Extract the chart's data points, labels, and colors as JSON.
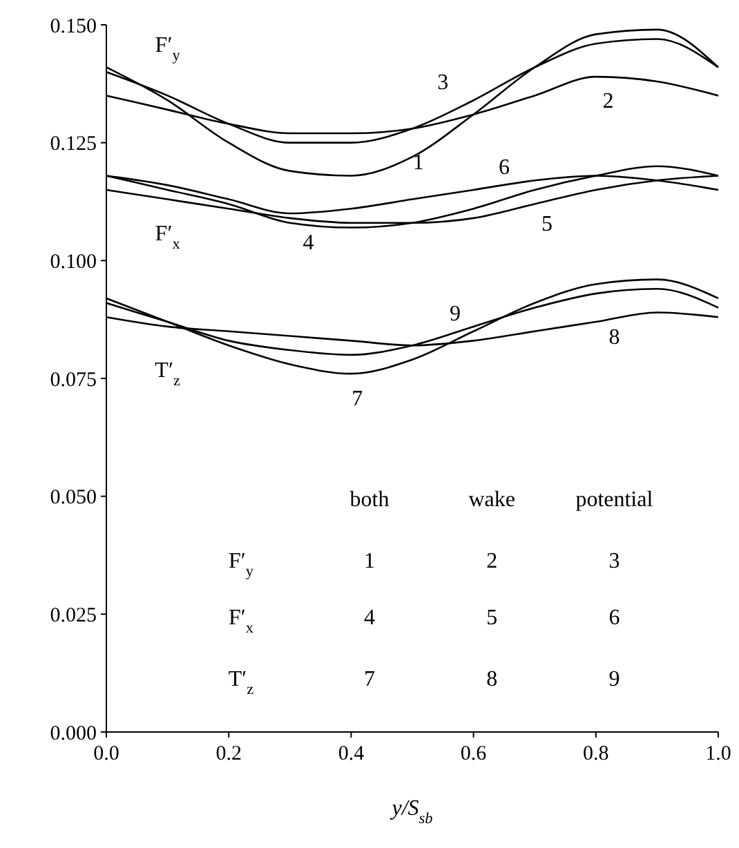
{
  "chart_data": {
    "type": "line",
    "xlabel": "y/S$_{sb}$",
    "x": [
      0,
      0.1,
      0.2,
      0.3,
      0.4,
      0.5,
      0.6,
      0.7,
      0.8,
      0.9,
      1.0
    ],
    "series": [
      {
        "name": "1",
        "color": "#000000",
        "values": [
          0.141,
          0.134,
          0.125,
          0.119,
          0.118,
          0.122,
          0.131,
          0.141,
          0.148,
          0.149,
          0.141
        ]
      },
      {
        "name": "2",
        "color": "#000000",
        "values": [
          0.135,
          0.132,
          0.129,
          0.127,
          0.127,
          0.128,
          0.131,
          0.135,
          0.139,
          0.138,
          0.135
        ]
      },
      {
        "name": "3",
        "color": "#000000",
        "values": [
          0.14,
          0.135,
          0.129,
          0.125,
          0.125,
          0.128,
          0.134,
          0.141,
          0.146,
          0.147,
          0.141
        ]
      },
      {
        "name": "4",
        "color": "#000000",
        "values": [
          0.118,
          0.115,
          0.112,
          0.108,
          0.107,
          0.108,
          0.111,
          0.115,
          0.118,
          0.12,
          0.118
        ]
      },
      {
        "name": "5",
        "color": "#000000",
        "values": [
          0.115,
          0.113,
          0.111,
          0.109,
          0.108,
          0.108,
          0.109,
          0.112,
          0.115,
          0.117,
          0.118
        ]
      },
      {
        "name": "6",
        "color": "#000000",
        "values": [
          0.118,
          0.116,
          0.113,
          0.11,
          0.111,
          0.113,
          0.115,
          0.117,
          0.118,
          0.117,
          0.115
        ]
      },
      {
        "name": "7",
        "color": "#000000",
        "values": [
          0.092,
          0.087,
          0.082,
          0.078,
          0.076,
          0.079,
          0.085,
          0.091,
          0.095,
          0.096,
          0.092
        ]
      },
      {
        "name": "8",
        "color": "#000000",
        "values": [
          0.088,
          0.086,
          0.085,
          0.084,
          0.083,
          0.082,
          0.083,
          0.085,
          0.087,
          0.089,
          0.088
        ]
      },
      {
        "name": "9",
        "color": "#000000",
        "values": [
          0.091,
          0.087,
          0.083,
          0.081,
          0.08,
          0.082,
          0.086,
          0.09,
          0.093,
          0.094,
          0.09
        ]
      }
    ],
    "xlim": [
      0,
      1
    ],
    "ylim": [
      0,
      0.15
    ],
    "xticks": [
      {
        "value": 0,
        "label": "0.0"
      },
      {
        "value": 0.2,
        "label": "0.2"
      },
      {
        "value": 0.4,
        "label": "0.4"
      },
      {
        "value": 0.6,
        "label": "0.6"
      },
      {
        "value": 0.8,
        "label": "0.8"
      },
      {
        "value": 1,
        "label": "1.0"
      }
    ],
    "yticks": [
      {
        "value": 0,
        "label": "0.000"
      },
      {
        "value": 0.025,
        "label": "0.025"
      },
      {
        "value": 0.05,
        "label": "0.050"
      },
      {
        "value": 0.075,
        "label": "0.075"
      },
      {
        "value": 0.1,
        "label": "0.100"
      },
      {
        "value": 0.125,
        "label": "0.125"
      },
      {
        "value": 0.15,
        "label": "0.150"
      }
    ],
    "grid": false,
    "marker": "none",
    "line_style": "solid",
    "annotations": [
      "F′$_{y}$",
      "F′$_{x}$",
      "T′$_{z}$",
      "both",
      "wake",
      "potential",
      "F′$_{y}$",
      "1",
      "2",
      "3",
      "F′$_{x}$",
      "4",
      "5",
      "6",
      "T′$_{z}$",
      "7",
      "8",
      "9"
    ]
  }
}
